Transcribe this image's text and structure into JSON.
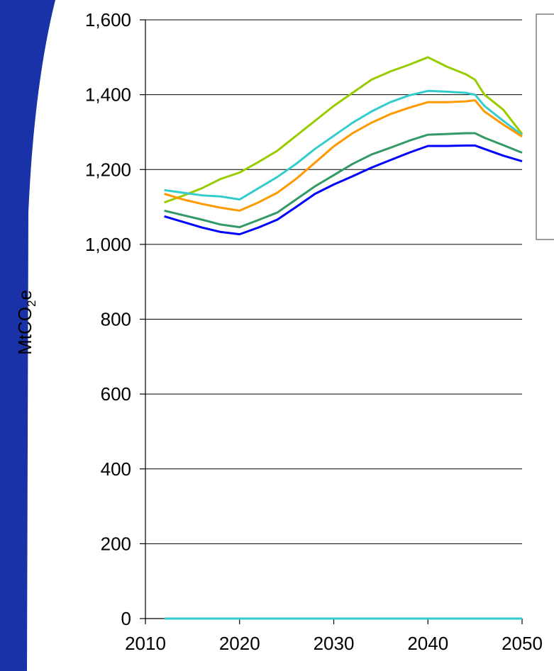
{
  "chart_data": {
    "type": "line",
    "title": "",
    "xlabel": "",
    "ylabel": "MtCO",
    "ylabel_subscript": "2",
    "ylabel_suffix": "e",
    "xlim": [
      2010,
      2050
    ],
    "ylim": [
      0,
      1600
    ],
    "x_ticks": [
      2010,
      2020,
      2030,
      2040,
      2050
    ],
    "x_tick_labels": [
      "2010",
      "2020",
      "2030",
      "2040",
      "2050"
    ],
    "y_ticks": [
      0,
      200,
      400,
      600,
      800,
      1000,
      1200,
      1400,
      1600
    ],
    "y_tick_labels": [
      "0",
      "200",
      "400",
      "600",
      "800",
      "1,000",
      "1,200",
      "1,400",
      "1,600"
    ],
    "grid": "horizontal",
    "legend": "top-right, entries not visible",
    "x": [
      2012,
      2014,
      2016,
      2018,
      2020,
      2022,
      2024,
      2026,
      2028,
      2030,
      2032,
      2034,
      2036,
      2038,
      2040,
      2042,
      2044,
      2045,
      2046,
      2048,
      2050
    ],
    "series": [
      {
        "color": "#99cc00",
        "values": [
          1112,
          1130,
          1150,
          1175,
          1192,
          1220,
          1250,
          1290,
          1330,
          1370,
          1405,
          1440,
          1462,
          1480,
          1500,
          1475,
          1455,
          1440,
          1400,
          1360,
          1295
        ]
      },
      {
        "color": "#33cccc",
        "values": [
          1145,
          1138,
          1131,
          1128,
          1120,
          1150,
          1180,
          1215,
          1255,
          1290,
          1325,
          1355,
          1380,
          1398,
          1410,
          1408,
          1405,
          1400,
          1370,
          1330,
          1292
        ]
      },
      {
        "color": "#ff9900",
        "values": [
          1135,
          1120,
          1108,
          1098,
          1090,
          1112,
          1138,
          1175,
          1218,
          1262,
          1297,
          1325,
          1348,
          1365,
          1380,
          1380,
          1382,
          1385,
          1355,
          1320,
          1288
        ]
      },
      {
        "color": "#339966",
        "values": [
          1090,
          1078,
          1066,
          1053,
          1046,
          1065,
          1085,
          1120,
          1155,
          1185,
          1215,
          1240,
          1258,
          1277,
          1293,
          1295,
          1297,
          1297,
          1285,
          1265,
          1245
        ]
      },
      {
        "color": "#0000ff",
        "values": [
          1075,
          1060,
          1045,
          1033,
          1027,
          1045,
          1066,
          1100,
          1135,
          1160,
          1182,
          1205,
          1225,
          1245,
          1263,
          1263,
          1264,
          1264,
          1255,
          1237,
          1222
        ]
      },
      {
        "color": "#33cccc",
        "values": [
          0,
          0,
          0,
          0,
          0,
          0,
          0,
          0,
          0,
          0,
          0,
          0,
          0,
          0,
          0,
          0,
          0,
          0,
          0,
          0,
          0
        ]
      }
    ]
  },
  "colors": {
    "background_accent": "#1a32a8",
    "gridline": "#000000",
    "legend_border": "#7f7f7f"
  }
}
